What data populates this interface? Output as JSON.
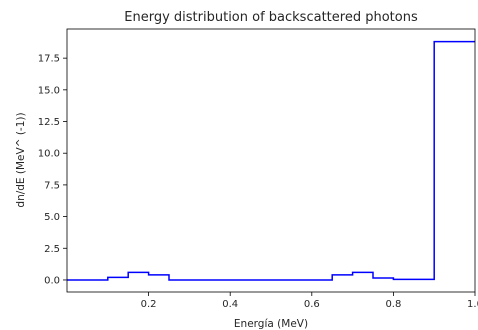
{
  "chart_data": {
    "type": "line",
    "drawstyle": "steps-post",
    "title": "Energy distribution of backscattered photons",
    "xlabel": "Energía (MeV)",
    "ylabel": "dn/dE (MeV^ (-1))",
    "xlim": [
      0.0,
      1.0
    ],
    "ylim": [
      -0.95,
      19.8
    ],
    "xticks": [
      0.2,
      0.4,
      0.6,
      0.8,
      1.0
    ],
    "xtick_labels": [
      "0.2",
      "0.4",
      "0.6",
      "0.8",
      "1.0"
    ],
    "yticks": [
      0.0,
      2.5,
      5.0,
      7.5,
      10.0,
      12.5,
      15.0,
      17.5
    ],
    "ytick_labels": [
      "0.0",
      "2.5",
      "5.0",
      "7.5",
      "10.0",
      "12.5",
      "15.0",
      "17.5"
    ],
    "grid": false,
    "series": [
      {
        "color": "#0000ff",
        "x": [
          0.0,
          0.05,
          0.1,
          0.15,
          0.2,
          0.25,
          0.3,
          0.35,
          0.4,
          0.45,
          0.5,
          0.55,
          0.6,
          0.65,
          0.7,
          0.75,
          0.8,
          0.85,
          0.9,
          0.95,
          1.0
        ],
        "y": [
          0.0,
          0.0,
          0.2,
          0.6,
          0.4,
          0.0,
          0.0,
          0.0,
          0.0,
          0.0,
          0.0,
          0.0,
          0.0,
          0.4,
          0.6,
          0.15,
          0.05,
          0.05,
          18.8,
          18.8,
          18.8
        ]
      }
    ]
  }
}
